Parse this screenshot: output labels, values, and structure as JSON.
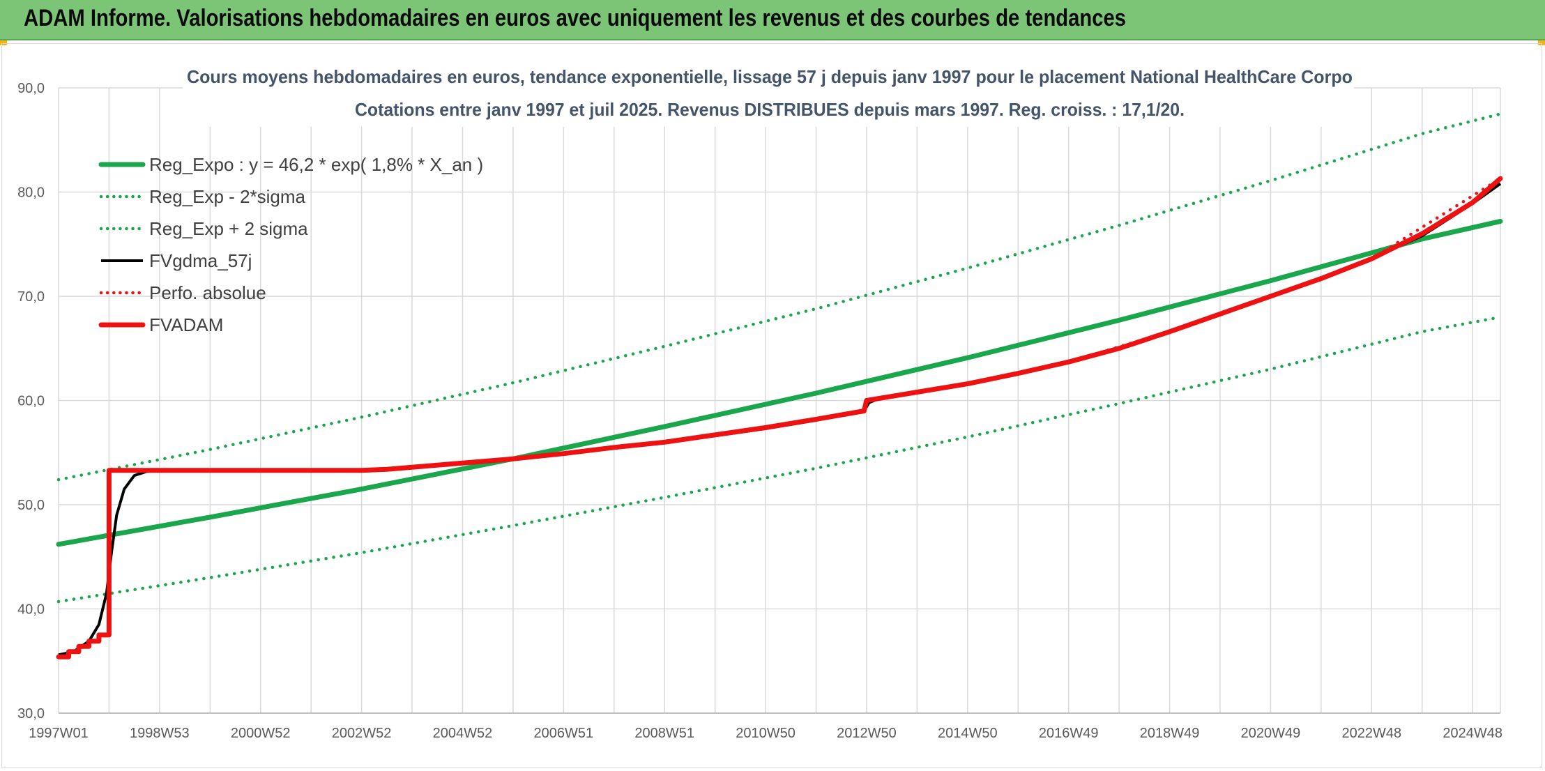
{
  "banner": {
    "title": "ADAM Informe. Valorisations hebdomadaires en euros avec uniquement les revenus et des courbes de tendances"
  },
  "colors": {
    "banner_bg": "#7cc576",
    "green": "#1aa64a",
    "red": "#ee1111",
    "black": "#000000",
    "grid": "#d9d9d9",
    "corner": "#f2b417"
  },
  "chart_data": {
    "type": "line",
    "title": "Cours moyens hebdomadaires en euros, tendance exponentielle, lissage 57 j depuis janv 1997 pour le placement National HealthCare Corpo",
    "subtitle": "Cotations entre janv 1997 et juil 2025. Revenus DISTRIBUES depuis mars 1997. Reg. croiss. : 17,1/20.",
    "xlabel": "",
    "ylabel": "",
    "ylim": [
      30,
      90
    ],
    "yticks": [
      "30,0",
      "40,0",
      "50,0",
      "60,0",
      "70,0",
      "80,0",
      "90,0"
    ],
    "xlim": [
      1997.0,
      2025.55
    ],
    "xticks": [
      {
        "x": 1997.0,
        "label": "1997W01"
      },
      {
        "x": 1999.0,
        "label": "1998W53"
      },
      {
        "x": 2001.0,
        "label": "2000W52"
      },
      {
        "x": 2003.0,
        "label": "2002W52"
      },
      {
        "x": 2005.0,
        "label": "2004W52"
      },
      {
        "x": 2007.0,
        "label": "2006W51"
      },
      {
        "x": 2009.0,
        "label": "2008W51"
      },
      {
        "x": 2011.0,
        "label": "2010W50"
      },
      {
        "x": 2013.0,
        "label": "2012W50"
      },
      {
        "x": 2015.0,
        "label": "2014W50"
      },
      {
        "x": 2017.0,
        "label": "2016W49"
      },
      {
        "x": 2019.0,
        "label": "2018W49"
      },
      {
        "x": 2021.0,
        "label": "2020W49"
      },
      {
        "x": 2023.0,
        "label": "2022W48"
      },
      {
        "x": 2025.0,
        "label": "2024W48"
      }
    ],
    "grid": true,
    "legend_position": "top-left",
    "series": [
      {
        "name": "Reg_Expo : y = 46,2 * exp( 1,8% *  X_an )",
        "style": "solid-thick",
        "color": "#1aa64a",
        "points": [
          [
            1997.0,
            46.2
          ],
          [
            2000.0,
            48.8
          ],
          [
            2003.0,
            51.5
          ],
          [
            2006.0,
            54.4
          ],
          [
            2009.0,
            57.5
          ],
          [
            2012.0,
            60.7
          ],
          [
            2015.0,
            64.1
          ],
          [
            2018.0,
            67.7
          ],
          [
            2021.0,
            71.5
          ],
          [
            2024.0,
            75.5
          ],
          [
            2025.55,
            77.2
          ]
        ]
      },
      {
        "name": "Reg_Exp - 2*sigma",
        "style": "dotted",
        "color": "#1aa64a",
        "points": [
          [
            1997.0,
            40.7
          ],
          [
            2000.0,
            43.0
          ],
          [
            2003.0,
            45.4
          ],
          [
            2006.0,
            48.0
          ],
          [
            2009.0,
            50.7
          ],
          [
            2012.0,
            53.5
          ],
          [
            2015.0,
            56.5
          ],
          [
            2018.0,
            59.7
          ],
          [
            2021.0,
            63.0
          ],
          [
            2024.0,
            66.6
          ],
          [
            2025.55,
            68.0
          ]
        ]
      },
      {
        "name": "Reg_Exp + 2 sigma",
        "style": "dotted",
        "color": "#1aa64a",
        "points": [
          [
            1997.0,
            52.4
          ],
          [
            2000.0,
            55.3
          ],
          [
            2003.0,
            58.4
          ],
          [
            2006.0,
            61.7
          ],
          [
            2009.0,
            65.2
          ],
          [
            2012.0,
            68.8
          ],
          [
            2015.0,
            72.7
          ],
          [
            2018.0,
            76.8
          ],
          [
            2021.0,
            81.1
          ],
          [
            2024.0,
            85.6
          ],
          [
            2025.55,
            87.5
          ]
        ]
      },
      {
        "name": "FVgdma_57j",
        "style": "solid",
        "color": "#000000",
        "points": [
          [
            1997.0,
            35.6
          ],
          [
            1997.3,
            35.9
          ],
          [
            1997.6,
            36.9
          ],
          [
            1997.8,
            38.5
          ],
          [
            1997.95,
            41.5
          ],
          [
            1998.05,
            45.5
          ],
          [
            1998.15,
            49.0
          ],
          [
            1998.3,
            51.5
          ],
          [
            1998.5,
            52.8
          ],
          [
            1998.75,
            53.2
          ],
          [
            1999.0,
            53.3
          ],
          [
            2003.0,
            53.3
          ],
          [
            2003.6,
            53.4
          ],
          [
            2004.0,
            53.6
          ],
          [
            2005.0,
            54.0
          ],
          [
            2006.0,
            54.4
          ],
          [
            2007.0,
            54.9
          ],
          [
            2008.0,
            55.4
          ],
          [
            2009.0,
            56.0
          ],
          [
            2010.0,
            56.6
          ],
          [
            2011.0,
            57.3
          ],
          [
            2012.0,
            58.1
          ],
          [
            2012.95,
            59.0
          ],
          [
            2013.05,
            59.8
          ],
          [
            2013.2,
            60.1
          ],
          [
            2014.0,
            60.8
          ],
          [
            2015.0,
            61.6
          ],
          [
            2016.0,
            62.6
          ],
          [
            2017.0,
            63.7
          ],
          [
            2018.0,
            65.0
          ],
          [
            2019.0,
            66.6
          ],
          [
            2020.0,
            68.3
          ],
          [
            2021.0,
            70.0
          ],
          [
            2022.0,
            71.6
          ],
          [
            2023.0,
            73.6
          ],
          [
            2024.0,
            75.8
          ],
          [
            2025.0,
            78.9
          ],
          [
            2025.55,
            80.8
          ]
        ]
      },
      {
        "name": "Perfo. absolue",
        "style": "dotted",
        "color": "#ee1111",
        "points": [
          [
            1997.0,
            35.4
          ],
          [
            1997.2,
            35.4
          ],
          [
            1997.2,
            35.9
          ],
          [
            1997.4,
            35.9
          ],
          [
            1997.4,
            36.4
          ],
          [
            1997.6,
            36.4
          ],
          [
            1997.6,
            36.9
          ],
          [
            1997.8,
            36.9
          ],
          [
            1997.8,
            37.5
          ],
          [
            1998.0,
            37.5
          ],
          [
            1998.0,
            53.3
          ],
          [
            2003.0,
            53.3
          ],
          [
            2004.0,
            53.6
          ],
          [
            2006.0,
            54.4
          ],
          [
            2008.0,
            55.5
          ],
          [
            2010.0,
            56.7
          ],
          [
            2012.0,
            58.2
          ],
          [
            2012.95,
            59.0
          ],
          [
            2013.0,
            60.0
          ],
          [
            2015.0,
            61.6
          ],
          [
            2017.0,
            63.7
          ],
          [
            2019.0,
            66.6
          ],
          [
            2021.0,
            70.0
          ],
          [
            2023.0,
            73.6
          ],
          [
            2025.55,
            81.3
          ]
        ]
      },
      {
        "name": "FVADAM",
        "style": "solid-thick",
        "color": "#ee1111",
        "points": [
          [
            1997.0,
            35.4
          ],
          [
            1997.2,
            35.4
          ],
          [
            1997.2,
            35.9
          ],
          [
            1997.4,
            35.9
          ],
          [
            1997.4,
            36.4
          ],
          [
            1997.6,
            36.4
          ],
          [
            1997.6,
            36.9
          ],
          [
            1997.8,
            36.9
          ],
          [
            1997.8,
            37.5
          ],
          [
            1998.0,
            37.5
          ],
          [
            1998.0,
            53.3
          ],
          [
            2003.0,
            53.3
          ],
          [
            2003.5,
            53.4
          ],
          [
            2004.0,
            53.6
          ],
          [
            2005.0,
            54.0
          ],
          [
            2006.0,
            54.4
          ],
          [
            2007.0,
            54.9
          ],
          [
            2008.0,
            55.5
          ],
          [
            2009.0,
            56.0
          ],
          [
            2010.0,
            56.7
          ],
          [
            2011.0,
            57.4
          ],
          [
            2012.0,
            58.2
          ],
          [
            2012.95,
            59.0
          ],
          [
            2013.0,
            60.0
          ],
          [
            2014.0,
            60.8
          ],
          [
            2015.0,
            61.6
          ],
          [
            2016.0,
            62.6
          ],
          [
            2017.0,
            63.7
          ],
          [
            2018.0,
            65.0
          ],
          [
            2019.0,
            66.6
          ],
          [
            2020.0,
            68.3
          ],
          [
            2021.0,
            70.0
          ],
          [
            2022.0,
            71.7
          ],
          [
            2023.0,
            73.6
          ],
          [
            2024.0,
            76.0
          ],
          [
            2025.0,
            79.0
          ],
          [
            2025.55,
            81.3
          ]
        ]
      }
    ]
  }
}
